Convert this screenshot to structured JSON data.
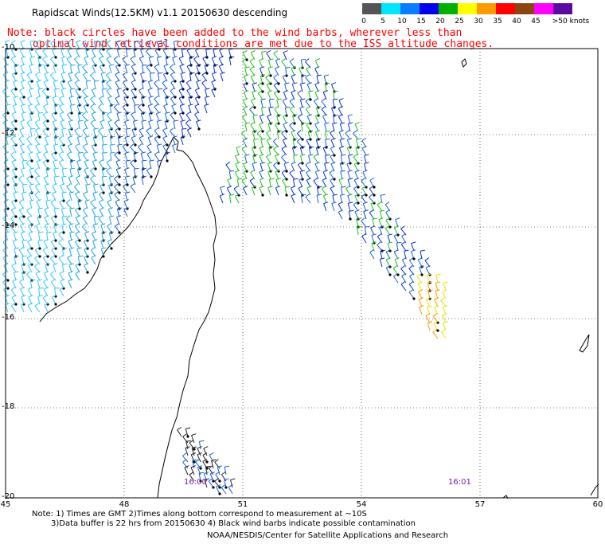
{
  "title": "Rapidscat Winds(12.5KM) v1.1 20150630 descending",
  "note_line1": "Note: black circles have been added to the wind barbs, wherever less than",
  "note_line2": "optimal wind retrieval conditions are met due to the ISS altitude changes.",
  "legend": {
    "labels": [
      "0",
      "5",
      "10",
      "15",
      "20",
      "25",
      "30",
      "35",
      "40",
      "45",
      ">50 knots"
    ],
    "colors": [
      "#555555",
      "#00e5ff",
      "#0a7cff",
      "#0000ee",
      "#00b000",
      "#ffff00",
      "#ff9900",
      "#ff0000",
      "#8b4513",
      "#ff00ff",
      "#5a0aa0"
    ]
  },
  "lat_labels": [
    "-10",
    "-12",
    "-14",
    "-16",
    "-18",
    "-20"
  ],
  "lon_labels": [
    "45",
    "48",
    "51",
    "54",
    "57",
    "60"
  ],
  "time_labels": [
    "16:00",
    "16:01"
  ],
  "footnote_line1": "Note: 1) Times are GMT 2)Times along bottom correspond to measurement at ~10S",
  "footnote_line2": "3)Data buffer is 22 hrs from 20150630 4) Black wind barbs indicate possible contamination",
  "credit": "NOAA/NESDIS/Center for Satellite Applications and Research"
}
